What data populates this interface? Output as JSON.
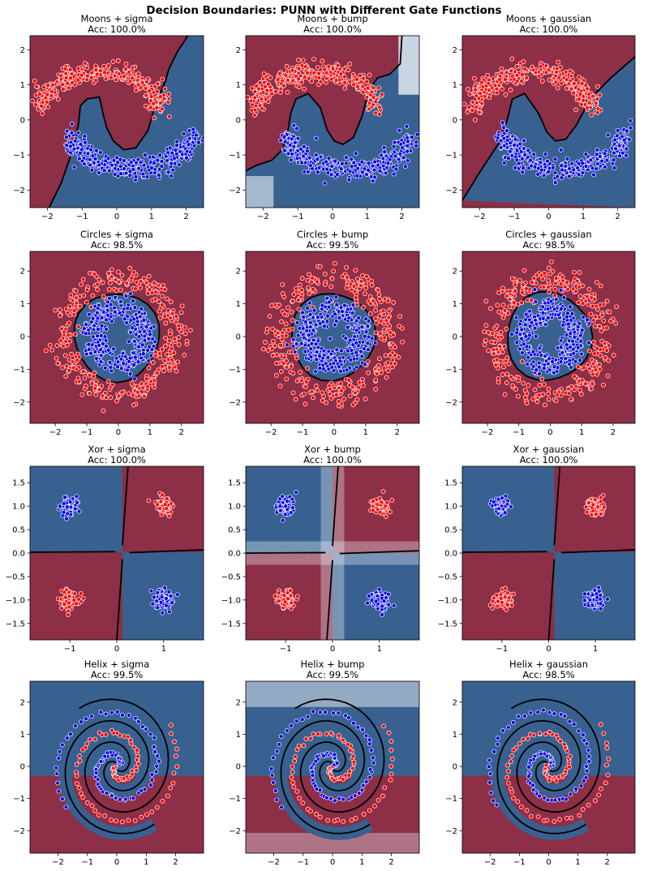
{
  "title": "Decision Boundaries: PUNN with Different Gate Functions",
  "colors": {
    "red_region": "#8c2f47",
    "blue_region": "#38618f",
    "white_band": "#eef3f8",
    "red_point": "#ff0000",
    "blue_point": "#0000ee",
    "boundary": "#000000"
  },
  "chart_data": [
    {
      "type": "scatter",
      "dataset": "moons",
      "gate": "sigma",
      "title": "Moons + sigma",
      "accuracy": "Acc: 100.0%",
      "xlim": [
        -2.5,
        2.5
      ],
      "ylim": [
        -2.5,
        2.4
      ],
      "xticks": [
        {
          "v": -2,
          "label": "−2"
        },
        {
          "v": -1,
          "label": "−1"
        },
        {
          "v": 0,
          "label": "0"
        },
        {
          "v": 1,
          "label": "1"
        },
        {
          "v": 2,
          "label": "2"
        }
      ],
      "yticks": [
        {
          "v": -2,
          "label": "−2"
        },
        {
          "v": -1,
          "label": "−1"
        },
        {
          "v": 0,
          "label": "0"
        },
        {
          "v": 1,
          "label": "1"
        },
        {
          "v": 2,
          "label": "2"
        }
      ]
    },
    {
      "type": "scatter",
      "dataset": "moons",
      "gate": "bump",
      "title": "Moons + bump",
      "accuracy": "Acc: 100.0%",
      "xlim": [
        -2.5,
        2.5
      ],
      "ylim": [
        -2.5,
        2.4
      ],
      "xticks": [
        {
          "v": -2,
          "label": "−2"
        },
        {
          "v": -1,
          "label": "−1"
        },
        {
          "v": 0,
          "label": "0"
        },
        {
          "v": 1,
          "label": "1"
        },
        {
          "v": 2,
          "label": "2"
        }
      ],
      "yticks": [
        {
          "v": -2,
          "label": "−2"
        },
        {
          "v": -1,
          "label": "−1"
        },
        {
          "v": 0,
          "label": "0"
        },
        {
          "v": 1,
          "label": "1"
        },
        {
          "v": 2,
          "label": "2"
        }
      ]
    },
    {
      "type": "scatter",
      "dataset": "moons",
      "gate": "gaussian",
      "title": "Moons + gaussian",
      "accuracy": "Acc: 100.0%",
      "xlim": [
        -2.5,
        2.5
      ],
      "ylim": [
        -2.5,
        2.4
      ],
      "xticks": [
        {
          "v": -2,
          "label": "−2"
        },
        {
          "v": -1,
          "label": "−1"
        },
        {
          "v": 0,
          "label": "0"
        },
        {
          "v": 1,
          "label": "1"
        },
        {
          "v": 2,
          "label": "2"
        }
      ],
      "yticks": [
        {
          "v": -2,
          "label": "−2"
        },
        {
          "v": -1,
          "label": "−1"
        },
        {
          "v": 0,
          "label": "0"
        },
        {
          "v": 1,
          "label": "1"
        },
        {
          "v": 2,
          "label": "2"
        }
      ]
    },
    {
      "type": "scatter",
      "dataset": "circles",
      "gate": "sigma",
      "title": "Circles + sigma",
      "accuracy": "Acc: 98.5%",
      "xlim": [
        -2.8,
        2.7
      ],
      "ylim": [
        -2.65,
        2.6
      ],
      "xticks": [
        {
          "v": -2,
          "label": "−2"
        },
        {
          "v": -1,
          "label": "−1"
        },
        {
          "v": 0,
          "label": "0"
        },
        {
          "v": 1,
          "label": "1"
        },
        {
          "v": 2,
          "label": "2"
        }
      ],
      "yticks": [
        {
          "v": -2,
          "label": "−2"
        },
        {
          "v": -1,
          "label": "−1"
        },
        {
          "v": 0,
          "label": "0"
        },
        {
          "v": 1,
          "label": "1"
        },
        {
          "v": 2,
          "label": "2"
        }
      ]
    },
    {
      "type": "scatter",
      "dataset": "circles",
      "gate": "bump",
      "title": "Circles + bump",
      "accuracy": "Acc: 99.5%",
      "xlim": [
        -2.8,
        2.7
      ],
      "ylim": [
        -2.65,
        2.6
      ],
      "xticks": [
        {
          "v": -2,
          "label": "−2"
        },
        {
          "v": -1,
          "label": "−1"
        },
        {
          "v": 0,
          "label": "0"
        },
        {
          "v": 1,
          "label": "1"
        },
        {
          "v": 2,
          "label": "2"
        }
      ],
      "yticks": [
        {
          "v": -2,
          "label": "−2"
        },
        {
          "v": -1,
          "label": "−1"
        },
        {
          "v": 0,
          "label": "0"
        },
        {
          "v": 1,
          "label": "1"
        },
        {
          "v": 2,
          "label": "2"
        }
      ]
    },
    {
      "type": "scatter",
      "dataset": "circles",
      "gate": "gaussian",
      "title": "Circles + gaussian",
      "accuracy": "Acc: 98.5%",
      "xlim": [
        -2.8,
        2.7
      ],
      "ylim": [
        -2.65,
        2.6
      ],
      "xticks": [
        {
          "v": -2,
          "label": "−2"
        },
        {
          "v": -1,
          "label": "−1"
        },
        {
          "v": 0,
          "label": "0"
        },
        {
          "v": 1,
          "label": "1"
        },
        {
          "v": 2,
          "label": "2"
        }
      ],
      "yticks": [
        {
          "v": -2,
          "label": "−2"
        },
        {
          "v": -1,
          "label": "−1"
        },
        {
          "v": 0,
          "label": "0"
        },
        {
          "v": 1,
          "label": "1"
        },
        {
          "v": 2,
          "label": "2"
        }
      ]
    },
    {
      "type": "scatter",
      "dataset": "xor",
      "gate": "sigma",
      "title": "Xor + sigma",
      "accuracy": "Acc: 100.0%",
      "xlim": [
        -1.85,
        1.85
      ],
      "ylim": [
        -1.85,
        1.85
      ],
      "xticks": [
        {
          "v": -1,
          "label": "−1"
        },
        {
          "v": 0,
          "label": "0"
        },
        {
          "v": 1,
          "label": "1"
        }
      ],
      "yticks": [
        {
          "v": -1.5,
          "label": "−1.5"
        },
        {
          "v": -1.0,
          "label": "−1.0"
        },
        {
          "v": -0.5,
          "label": "−0.5"
        },
        {
          "v": 0.0,
          "label": "0.0"
        },
        {
          "v": 0.5,
          "label": "0.5"
        },
        {
          "v": 1.0,
          "label": "1.0"
        },
        {
          "v": 1.5,
          "label": "1.5"
        }
      ]
    },
    {
      "type": "scatter",
      "dataset": "xor",
      "gate": "bump",
      "title": "Xor + bump",
      "accuracy": "Acc: 100.0%",
      "xlim": [
        -1.85,
        1.85
      ],
      "ylim": [
        -1.85,
        1.85
      ],
      "xticks": [
        {
          "v": -1,
          "label": "−1"
        },
        {
          "v": 0,
          "label": "0"
        },
        {
          "v": 1,
          "label": "1"
        }
      ],
      "yticks": [
        {
          "v": -1.5,
          "label": "−1.5"
        },
        {
          "v": -1.0,
          "label": "−1.0"
        },
        {
          "v": -0.5,
          "label": "−0.5"
        },
        {
          "v": 0.0,
          "label": "0.0"
        },
        {
          "v": 0.5,
          "label": "0.5"
        },
        {
          "v": 1.0,
          "label": "1.0"
        },
        {
          "v": 1.5,
          "label": "1.5"
        }
      ]
    },
    {
      "type": "scatter",
      "dataset": "xor",
      "gate": "gaussian",
      "title": "Xor + gaussian",
      "accuracy": "Acc: 100.0%",
      "xlim": [
        -1.85,
        1.85
      ],
      "ylim": [
        -1.85,
        1.85
      ],
      "xticks": [
        {
          "v": -1,
          "label": "−1"
        },
        {
          "v": 0,
          "label": "0"
        },
        {
          "v": 1,
          "label": "1"
        }
      ],
      "yticks": [
        {
          "v": -1.5,
          "label": "−1.5"
        },
        {
          "v": -1.0,
          "label": "−1.0"
        },
        {
          "v": -0.5,
          "label": "−0.5"
        },
        {
          "v": 0.0,
          "label": "0.0"
        },
        {
          "v": 0.5,
          "label": "0.5"
        },
        {
          "v": 1.0,
          "label": "1.0"
        },
        {
          "v": 1.5,
          "label": "1.5"
        }
      ]
    },
    {
      "type": "scatter",
      "dataset": "helix",
      "gate": "sigma",
      "title": "Helix + sigma",
      "accuracy": "Acc: 99.5%",
      "xlim": [
        -2.95,
        2.95
      ],
      "ylim": [
        -2.7,
        2.65
      ],
      "xticks": [
        {
          "v": -2,
          "label": "−2"
        },
        {
          "v": -1,
          "label": "−1"
        },
        {
          "v": 0,
          "label": "0"
        },
        {
          "v": 1,
          "label": "1"
        },
        {
          "v": 2,
          "label": "2"
        }
      ],
      "yticks": [
        {
          "v": -2,
          "label": "−2"
        },
        {
          "v": -1,
          "label": "−1"
        },
        {
          "v": 0,
          "label": "0"
        },
        {
          "v": 1,
          "label": "1"
        },
        {
          "v": 2,
          "label": "2"
        }
      ]
    },
    {
      "type": "scatter",
      "dataset": "helix",
      "gate": "bump",
      "title": "Helix + bump",
      "accuracy": "Acc: 99.5%",
      "xlim": [
        -2.95,
        2.95
      ],
      "ylim": [
        -2.7,
        2.65
      ],
      "xticks": [
        {
          "v": -2,
          "label": "−2"
        },
        {
          "v": -1,
          "label": "−1"
        },
        {
          "v": 0,
          "label": "0"
        },
        {
          "v": 1,
          "label": "1"
        },
        {
          "v": 2,
          "label": "2"
        }
      ],
      "yticks": [
        {
          "v": -2,
          "label": "−2"
        },
        {
          "v": -1,
          "label": "−1"
        },
        {
          "v": 0,
          "label": "0"
        },
        {
          "v": 1,
          "label": "1"
        },
        {
          "v": 2,
          "label": "2"
        }
      ]
    },
    {
      "type": "scatter",
      "dataset": "helix",
      "gate": "gaussian",
      "title": "Helix + gaussian",
      "accuracy": "Acc: 98.5%",
      "xlim": [
        -2.95,
        2.95
      ],
      "ylim": [
        -2.7,
        2.65
      ],
      "xticks": [
        {
          "v": -2,
          "label": "−2"
        },
        {
          "v": -1,
          "label": "−1"
        },
        {
          "v": 0,
          "label": "0"
        },
        {
          "v": 1,
          "label": "1"
        },
        {
          "v": 2,
          "label": "2"
        }
      ],
      "yticks": [
        {
          "v": -2,
          "label": "−2"
        },
        {
          "v": -1,
          "label": "−1"
        },
        {
          "v": 0,
          "label": "0"
        },
        {
          "v": 1,
          "label": "1"
        },
        {
          "v": 2,
          "label": "2"
        }
      ]
    }
  ]
}
